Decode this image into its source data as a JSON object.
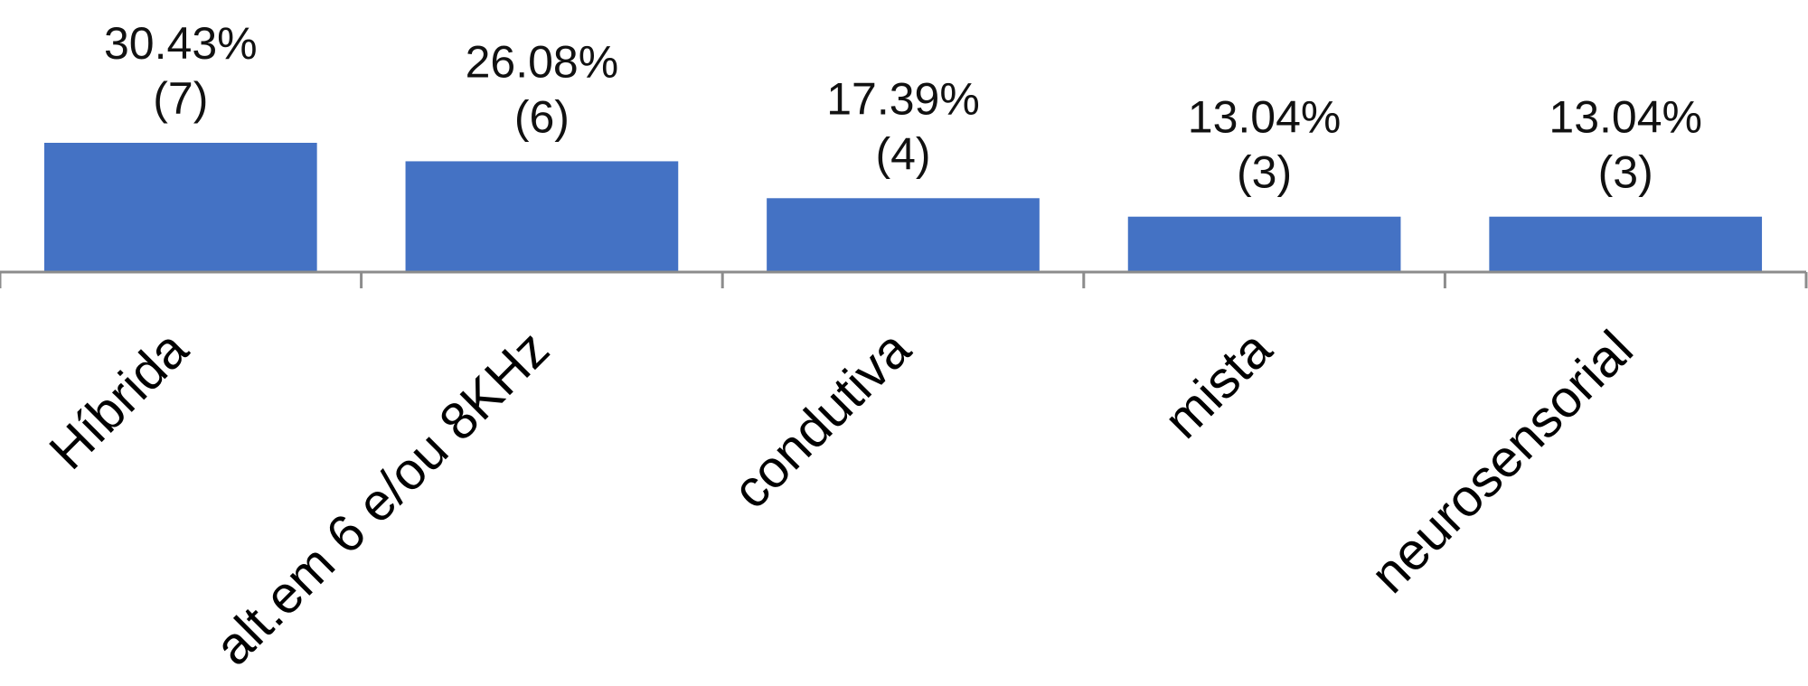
{
  "chart_data": {
    "type": "bar",
    "categories": [
      "Híbrida",
      "alt.em 6 e/ou 8KHz",
      "condutiva",
      "mista",
      "neurosensorial"
    ],
    "values": [
      30.43,
      26.08,
      17.39,
      13.04,
      13.04
    ],
    "counts": [
      7,
      6,
      4,
      3,
      3
    ],
    "data_labels": {
      "percent": [
        "30.43%",
        "26.08%",
        "17.39%",
        "13.04%",
        "13.04%"
      ],
      "count": [
        "(7)",
        "(6)",
        "(4)",
        "(3)",
        "(3)"
      ]
    },
    "ylim": [
      0,
      30.43
    ],
    "grid": false,
    "colors": {
      "bar": "#4472C4",
      "axis": "#8c8c8c"
    }
  }
}
